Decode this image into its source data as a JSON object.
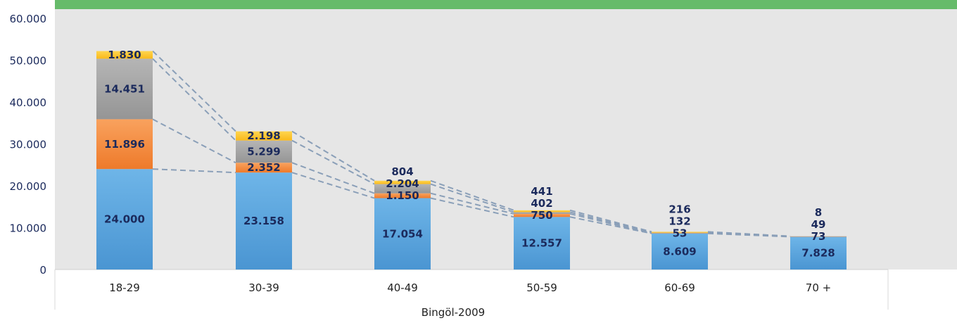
{
  "colors": {
    "top_band": "#66bb6a",
    "plot_bg": "#e6e6e6",
    "segment_blue": "#5aa6de",
    "segment_orange": "#f3873a",
    "segment_gray": "#a6a6a6",
    "segment_yellow": "#ffc72c",
    "connector": "#8a9fb8",
    "label_text": "#1b2a5c"
  },
  "chart_data": {
    "type": "bar",
    "stacked": true,
    "subtitle": "Bingöl-2009",
    "categories": [
      "18-29",
      "30-39",
      "40-49",
      "50-59",
      "60-69",
      "70 +"
    ],
    "ylim": [
      0,
      60000
    ],
    "yticks": [
      "0",
      "10.000",
      "20.000",
      "30.000",
      "40.000",
      "50.000",
      "60.000"
    ],
    "ytick_values": [
      0,
      10000,
      20000,
      30000,
      40000,
      50000,
      60000
    ],
    "grid": false,
    "legend": "none",
    "series": [
      {
        "values": [
          24000,
          23158,
          17054,
          12557,
          8609,
          7828
        ],
        "labels": [
          "24.000",
          "23.158",
          "17.054",
          "12.557",
          "8.609",
          "7.828"
        ]
      },
      {
        "values": [
          11896,
          2352,
          1150,
          750,
          53,
          73
        ],
        "labels": [
          "11.896",
          "2.352",
          "1.150",
          "750",
          "53",
          "73"
        ]
      },
      {
        "values": [
          14451,
          5299,
          2204,
          402,
          132,
          49
        ],
        "labels": [
          "14.451",
          "5.299",
          "2.204",
          "402",
          "132",
          "49"
        ]
      },
      {
        "values": [
          1830,
          2198,
          804,
          441,
          216,
          8
        ],
        "labels": [
          "1.830",
          "2.198",
          "804",
          "441",
          "216",
          "8"
        ]
      }
    ]
  }
}
